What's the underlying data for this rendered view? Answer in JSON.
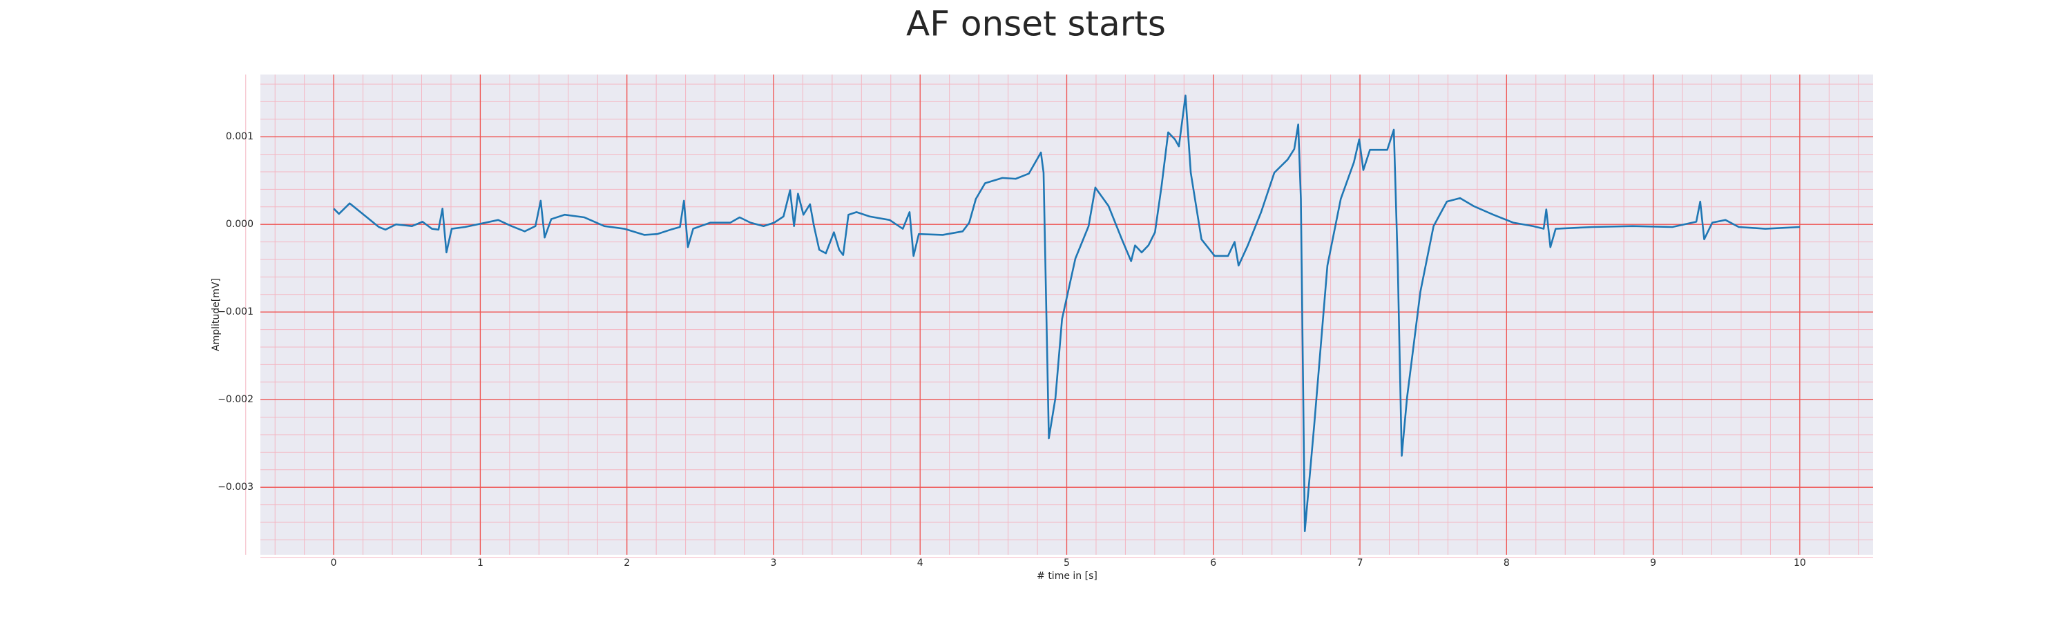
{
  "chart_data": {
    "type": "line",
    "title": "AF onset starts",
    "xlabel": "# time in [s]",
    "ylabel": "Amplitude[mV]",
    "color": "#1f77b4",
    "grid": true,
    "minor_grid": true,
    "xlim": [
      -0.5,
      10.5
    ],
    "xticks": [
      0,
      1,
      2,
      3,
      4,
      5,
      6,
      7,
      8,
      9,
      10
    ],
    "ylim": [
      -0.00377,
      0.00171
    ],
    "yticks": [
      {
        "value": -0.003,
        "label": "−0.003"
      },
      {
        "value": -0.002,
        "label": "−0.002"
      },
      {
        "value": -0.001,
        "label": "−0.001"
      },
      {
        "value": 0,
        "label": "0.000"
      },
      0.001
    ],
    "x": [
      0,
      0.036,
      0.109,
      0.308,
      0.353,
      0.425,
      0.534,
      0.606,
      0.67,
      0.715,
      0.742,
      0.769,
      0.805,
      0.896,
      1.122,
      1.213,
      1.303,
      1.376,
      1.412,
      1.439,
      1.484,
      1.575,
      1.71,
      1.846,
      1.982,
      2.118,
      2.208,
      2.299,
      2.362,
      2.389,
      2.416,
      2.452,
      2.57,
      2.706,
      2.769,
      2.842,
      2.932,
      3.005,
      3.068,
      3.113,
      3.14,
      3.167,
      3.204,
      3.249,
      3.276,
      3.312,
      3.357,
      3.412,
      3.448,
      3.475,
      3.511,
      3.566,
      3.656,
      3.792,
      3.882,
      3.928,
      3.955,
      3.991,
      4.154,
      4.29,
      4.335,
      4.38,
      4.443,
      4.561,
      4.652,
      4.742,
      4.824,
      4.842,
      4.878,
      4.923,
      4.968,
      5.059,
      5.149,
      5.195,
      5.285,
      5.376,
      5.439,
      5.466,
      5.511,
      5.557,
      5.602,
      5.647,
      5.692,
      5.738,
      5.765,
      5.81,
      5.846,
      5.919,
      6.009,
      6.1,
      6.145,
      6.172,
      6.235,
      6.326,
      6.416,
      6.507,
      6.552,
      6.579,
      6.597,
      6.624,
      6.688,
      6.778,
      6.869,
      6.959,
      6.995,
      7.023,
      7.068,
      7.186,
      7.231,
      7.258,
      7.285,
      7.321,
      7.412,
      7.502,
      7.593,
      7.683,
      7.774,
      7.91,
      8.045,
      8.181,
      8.253,
      8.271,
      8.299,
      8.335,
      8.588,
      8.86,
      9.131,
      9.294,
      9.321,
      9.348,
      9.403,
      9.493,
      9.584,
      9.765,
      10.0
    ],
    "values": [
      0.00018,
      0.00012,
      0.00024,
      -3e-05,
      -6e-05,
      0,
      -2e-05,
      3e-05,
      -5e-05,
      -6e-05,
      0.00018,
      -0.00032,
      -5e-05,
      -3e-05,
      5e-05,
      -2e-05,
      -8e-05,
      -2e-05,
      0.00027,
      -0.00015,
      6e-05,
      0.00011,
      8e-05,
      -2e-05,
      -5e-05,
      -0.00012,
      -0.00011,
      -6e-05,
      -3e-05,
      0.00027,
      -0.00026,
      -5e-05,
      2e-05,
      2e-05,
      8e-05,
      2e-05,
      -2e-05,
      2e-05,
      9e-05,
      0.00039,
      -2e-05,
      0.00035,
      0.00011,
      0.00023,
      -2e-05,
      -0.00029,
      -0.00033,
      -9e-05,
      -0.00029,
      -0.00035,
      0.00011,
      0.00014,
      9e-05,
      5e-05,
      -5e-05,
      0.00014,
      -0.00036,
      -0.00011,
      -0.00012,
      -8e-05,
      2e-05,
      0.00029,
      0.00047,
      0.00053,
      0.00052,
      0.00058,
      0.00082,
      0.00059,
      -0.00244,
      -0.00198,
      -0.00108,
      -0.00039,
      -2e-05,
      0.00042,
      0.00021,
      -0.00017,
      -0.00042,
      -0.00024,
      -0.00032,
      -0.00024,
      -9e-05,
      0.00044,
      0.00105,
      0.00097,
      0.00089,
      0.00147,
      0.00059,
      -0.00017,
      -0.00036,
      -0.00036,
      -0.0002,
      -0.00047,
      -0.00024,
      0.00014,
      0.00059,
      0.00074,
      0.00086,
      0.00114,
      0.00029,
      -0.0035,
      -0.00229,
      -0.00047,
      0.00029,
      0.00071,
      0.00097,
      0.00062,
      0.00085,
      0.00085,
      0.00108,
      -0.00047,
      -0.00264,
      -0.00198,
      -0.00077,
      -2e-05,
      0.00026,
      0.0003,
      0.00021,
      0.00011,
      2e-05,
      -2e-05,
      -5e-05,
      0.00017,
      -0.00026,
      -5e-05,
      -3e-05,
      -2e-05,
      -3e-05,
      3e-05,
      0.00026,
      -0.00017,
      2e-05,
      5e-05,
      -3e-05,
      -5e-05,
      -3e-05
    ]
  }
}
